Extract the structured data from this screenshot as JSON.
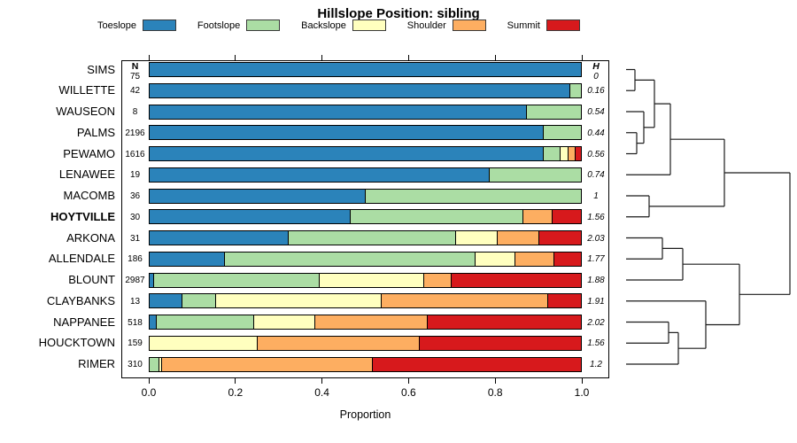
{
  "title": "Hillslope Position: sibling",
  "legend": {
    "items": [
      {
        "label": "Toeslope",
        "color": "#2B83BA"
      },
      {
        "label": "Footslope",
        "color": "#ABDDA4"
      },
      {
        "label": "Backslope",
        "color": "#FFFFBF"
      },
      {
        "label": "Shoulder",
        "color": "#FDAE61"
      },
      {
        "label": "Summit",
        "color": "#D7191C"
      }
    ]
  },
  "columns": {
    "n_header": "N",
    "h_header": "H"
  },
  "x_axis": {
    "title": "Proportion",
    "tick_labels": [
      "0.0",
      "0.2",
      "0.4",
      "0.6",
      "0.8",
      "1.0"
    ]
  },
  "chart_data": {
    "type": "bar",
    "stacked": true,
    "orientation": "horizontal",
    "title": "Hillslope Position: sibling",
    "xlabel": "Proportion",
    "xlim": [
      0,
      1
    ],
    "xticks": [
      0,
      0.2,
      0.4,
      0.6,
      0.8,
      1.0
    ],
    "grid": false,
    "legend_position": "top",
    "categories": [
      "Toeslope",
      "Footslope",
      "Backslope",
      "Shoulder",
      "Summit"
    ],
    "palette": {
      "Toeslope": "#2B83BA",
      "Footslope": "#ABDDA4",
      "Backslope": "#FFFFBF",
      "Shoulder": "#FDAE61",
      "Summit": "#D7191C"
    },
    "rows": [
      {
        "name": "SIMS",
        "n": "75",
        "h": "0",
        "values": [
          1.0,
          0,
          0,
          0,
          0
        ]
      },
      {
        "name": "WILLETTE",
        "n": "42",
        "h": "0.16",
        "values": [
          0.976,
          0.024,
          0,
          0,
          0
        ]
      },
      {
        "name": "WAUSEON",
        "n": "8",
        "h": "0.54",
        "values": [
          0.875,
          0.125,
          0,
          0,
          0
        ]
      },
      {
        "name": "PALMS",
        "n": "2196",
        "h": "0.44",
        "values": [
          0.914,
          0.086,
          0,
          0,
          0
        ]
      },
      {
        "name": "PEWAMO",
        "n": "1616",
        "h": "0.56",
        "values": [
          0.913,
          0.039,
          0.02,
          0.016,
          0.012
        ]
      },
      {
        "name": "LENAWEE",
        "n": "19",
        "h": "0.74",
        "values": [
          0.789,
          0.211,
          0,
          0,
          0
        ]
      },
      {
        "name": "MACOMB",
        "n": "36",
        "h": "1",
        "values": [
          0.5,
          0.5,
          0,
          0,
          0
        ]
      },
      {
        "name": "HOYTVILLE",
        "n": "30",
        "h": "1.56",
        "values": [
          0.467,
          0.4,
          0,
          0.067,
          0.066
        ],
        "emphasis": true
      },
      {
        "name": "ARKONA",
        "n": "31",
        "h": "2.03",
        "values": [
          0.323,
          0.387,
          0.097,
          0.097,
          0.096
        ]
      },
      {
        "name": "ALLENDALE",
        "n": "186",
        "h": "1.77",
        "values": [
          0.175,
          0.581,
          0.093,
          0.089,
          0.062
        ]
      },
      {
        "name": "BLOUNT",
        "n": "2987",
        "h": "1.88",
        "values": [
          0.01,
          0.385,
          0.242,
          0.063,
          0.3
        ]
      },
      {
        "name": "CLAYBANKS",
        "n": "13",
        "h": "1.91",
        "values": [
          0.077,
          0.077,
          0.385,
          0.385,
          0.076
        ]
      },
      {
        "name": "NAPPANEE",
        "n": "518",
        "h": "2.02",
        "values": [
          0.016,
          0.226,
          0.143,
          0.26,
          0.355
        ]
      },
      {
        "name": "HOUCKTOWN",
        "n": "159",
        "h": "1.56",
        "values": [
          0,
          0,
          0.25,
          0.376,
          0.374
        ]
      },
      {
        "name": "RIMER",
        "n": "310",
        "h": "1.2",
        "values": [
          0,
          0.023,
          0.006,
          0.488,
          0.483
        ]
      }
    ],
    "dendrogram": {
      "leaf_x": 707,
      "merges": [
        [
          "SIMS",
          "WILLETTE",
          717
        ],
        [
          "PALMS",
          "PEWAMO",
          719
        ],
        [
          "WAUSEON",
          "@1",
          727
        ],
        [
          "@0",
          "@2",
          739
        ],
        [
          "@3",
          "LENAWEE",
          757
        ],
        [
          "MACOMB",
          "HOYTVILLE",
          733
        ],
        [
          "@4",
          "@5",
          818
        ],
        [
          "ARKONA",
          "ALLENDALE",
          748
        ],
        [
          "@7",
          "BLOUNT",
          771
        ],
        [
          "NAPPANEE",
          "HOUCKTOWN",
          755
        ],
        [
          "@9",
          "RIMER",
          766
        ],
        [
          "CLAYBANKS",
          "@10",
          797
        ],
        [
          "@8",
          "@11",
          835
        ],
        [
          "@6",
          "@12",
          892
        ]
      ]
    }
  }
}
